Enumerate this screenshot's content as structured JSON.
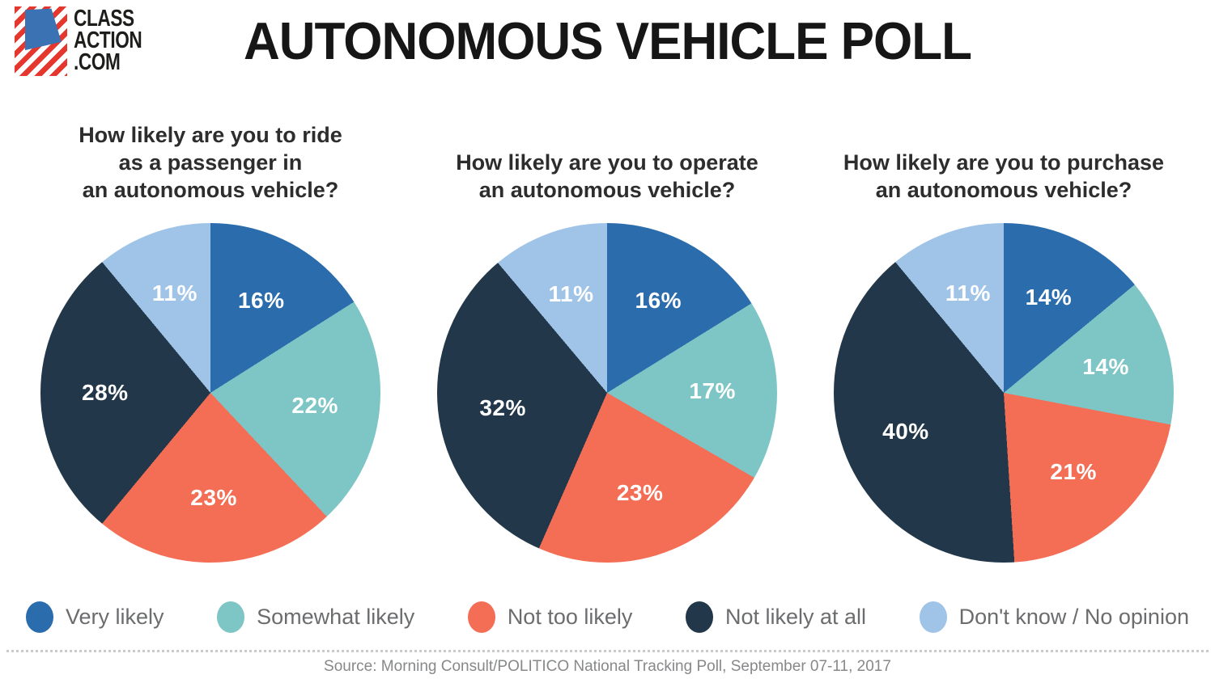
{
  "logo": {
    "lines": [
      "CLASS",
      "ACTION",
      ".COM"
    ],
    "colors": {
      "stripe_red": "#e5372e",
      "flag_blue": "#3a72b4",
      "text": "#1d1d1b"
    }
  },
  "header": {
    "title": "AUTONOMOUS VEHICLE POLL"
  },
  "palette": [
    "#2b6cad",
    "#7ec5c5",
    "#f46e55",
    "#22384a",
    "#9fc4e8"
  ],
  "chart_data": [
    {
      "type": "pie",
      "title": "How likely are you to ride\nas a passenger in\nan autonomous vehicle?",
      "categories": [
        "Very likely",
        "Somewhat likely",
        "Not too likely",
        "Not likely at all",
        "Don't know / No opinion"
      ],
      "values": [
        16,
        22,
        23,
        28,
        11
      ],
      "labels": [
        "16%",
        "22%",
        "23%",
        "28%",
        "11%"
      ],
      "unit": "%",
      "start_angle_deg": 0,
      "direction": "clockwise",
      "label_position": "inside"
    },
    {
      "type": "pie",
      "title": "How likely are you to operate\nan autonomous vehicle?",
      "categories": [
        "Very likely",
        "Somewhat likely",
        "Not too likely",
        "Not likely at all",
        "Don't know / No opinion"
      ],
      "values": [
        16,
        17,
        23,
        32,
        11
      ],
      "labels": [
        "16%",
        "17%",
        "23%",
        "32%",
        "11%"
      ],
      "unit": "%",
      "start_angle_deg": 0,
      "direction": "clockwise",
      "label_position": "inside"
    },
    {
      "type": "pie",
      "title": "How likely are you to purchase\nan autonomous vehicle?",
      "categories": [
        "Very likely",
        "Somewhat likely",
        "Not too likely",
        "Not likely at all",
        "Don't know / No opinion"
      ],
      "values": [
        14,
        14,
        21,
        40,
        11
      ],
      "labels": [
        "14%",
        "14%",
        "21%",
        "40%",
        "11%"
      ],
      "unit": "%",
      "start_angle_deg": 0,
      "direction": "clockwise",
      "label_position": "inside"
    }
  ],
  "legend": {
    "items": [
      {
        "label": "Very likely",
        "color": "#2b6cad"
      },
      {
        "label": "Somewhat likely",
        "color": "#7ec5c5"
      },
      {
        "label": "Not too likely",
        "color": "#f46e55"
      },
      {
        "label": "Not likely at all",
        "color": "#22384a"
      },
      {
        "label": "Don't know / No opinion",
        "color": "#9fc4e8"
      }
    ]
  },
  "footer": {
    "source": "Source: Morning Consult/POLITICO National Tracking Poll, September 07-11, 2017"
  }
}
